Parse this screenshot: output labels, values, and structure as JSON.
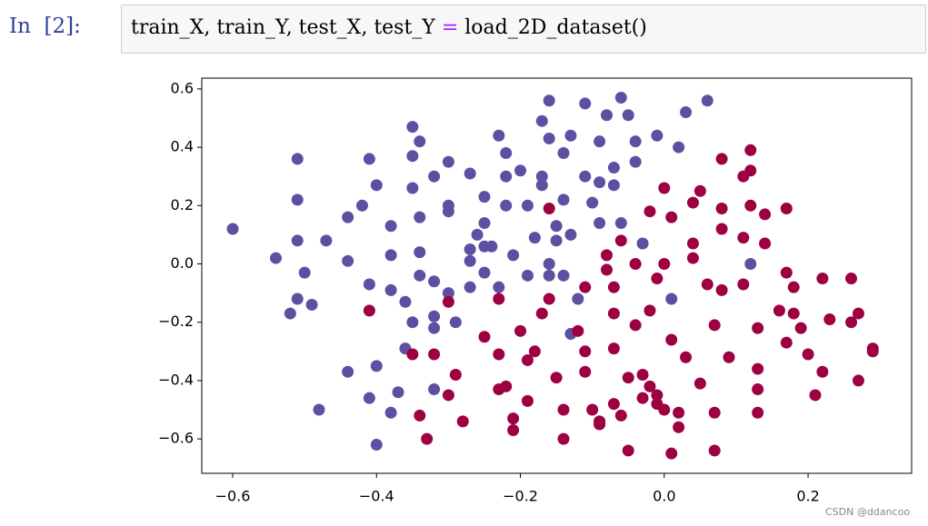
{
  "cell": {
    "prompt": "In  [2]:",
    "code": [
      "train_X, train_Y, test_X, test_Y ",
      "=",
      " load_2D_dataset()"
    ]
  },
  "watermark": "CSDN @ddancoo",
  "chart_data": {
    "type": "scatter",
    "xlim": [
      -0.643,
      0.344
    ],
    "ylim": [
      -0.718,
      0.637
    ],
    "xticks": [
      {
        "value": -0.6,
        "label": "−0.6"
      },
      {
        "value": -0.4,
        "label": "−0.4"
      },
      {
        "value": -0.2,
        "label": "−0.2"
      },
      {
        "value": 0,
        "label": "0.0"
      },
      0.2
    ],
    "yticks": [
      {
        "value": -0.6,
        "label": "−0.6"
      },
      {
        "value": -0.4,
        "label": "−0.4"
      },
      {
        "value": -0.2,
        "label": "−0.2"
      },
      {
        "value": 0,
        "label": "0.0"
      },
      0.2,
      0.4,
      0.6
    ],
    "grid": false,
    "series": [
      {
        "color": "#5e4fa2",
        "x": [
          -0.6,
          -0.54,
          -0.51,
          -0.51,
          -0.51,
          -0.5,
          -0.51,
          -0.52,
          -0.49,
          -0.47,
          -0.48,
          -0.44,
          -0.44,
          -0.42,
          -0.41,
          -0.4,
          -0.41,
          -0.38,
          -0.38,
          -0.38,
          -0.44,
          -0.4,
          -0.41,
          -0.4,
          -0.38,
          -0.37,
          -0.36,
          -0.36,
          -0.35,
          -0.34,
          -0.35,
          -0.35,
          -0.34,
          -0.34,
          -0.35,
          -0.34,
          -0.32,
          -0.32,
          -0.32,
          -0.32,
          -0.32,
          -0.3,
          -0.3,
          -0.3,
          -0.3,
          -0.29,
          -0.27,
          -0.27,
          -0.27,
          -0.27,
          -0.26,
          -0.25,
          -0.25,
          -0.25,
          -0.25,
          -0.24,
          -0.23,
          -0.22,
          -0.22,
          -0.22,
          -0.23,
          -0.21,
          -0.2,
          -0.19,
          -0.19,
          -0.18,
          -0.17,
          -0.17,
          -0.17,
          -0.16,
          -0.16,
          -0.16,
          -0.16,
          -0.15,
          -0.15,
          -0.14,
          -0.14,
          -0.14,
          -0.13,
          -0.13,
          -0.13,
          -0.12,
          -0.11,
          -0.11,
          -0.1,
          -0.09,
          -0.09,
          -0.09,
          -0.08,
          -0.07,
          -0.07,
          -0.06,
          -0.06,
          -0.05,
          -0.04,
          -0.04,
          -0.03,
          -0.01,
          0.02,
          0.03,
          0.06,
          0.01,
          0.12
        ],
        "values": [
          0.12,
          0.02,
          0.36,
          0.22,
          0.08,
          -0.03,
          -0.12,
          -0.17,
          -0.14,
          0.08,
          -0.5,
          0.16,
          0.01,
          0.2,
          0.36,
          0.27,
          -0.07,
          0.13,
          0.03,
          -0.09,
          -0.37,
          -0.35,
          -0.46,
          -0.62,
          -0.51,
          -0.44,
          -0.29,
          -0.13,
          -0.2,
          -0.04,
          0.26,
          0.37,
          0.16,
          0.04,
          0.47,
          0.42,
          0.3,
          -0.06,
          -0.18,
          -0.22,
          -0.43,
          -0.1,
          0.18,
          0.2,
          0.35,
          -0.2,
          0.31,
          0.05,
          0.01,
          -0.08,
          0.1,
          0.06,
          0.14,
          0.23,
          -0.03,
          0.06,
          0.44,
          0.38,
          0.3,
          0.2,
          -0.08,
          0.03,
          0.32,
          -0.04,
          0.2,
          0.09,
          0.3,
          0.27,
          0.49,
          0.43,
          0.56,
          -0.04,
          0.0,
          0.08,
          0.13,
          -0.04,
          0.38,
          0.22,
          0.44,
          0.1,
          -0.24,
          -0.12,
          0.55,
          0.3,
          0.21,
          0.42,
          0.28,
          0.14,
          0.51,
          0.27,
          0.33,
          0.57,
          0.14,
          0.51,
          0.42,
          0.35,
          0.07,
          0.44,
          0.4,
          0.52,
          0.56,
          -0.12,
          0.0
        ]
      },
      {
        "color": "#9e0142",
        "x": [
          -0.41,
          -0.35,
          -0.34,
          -0.33,
          -0.32,
          -0.3,
          -0.3,
          -0.29,
          -0.28,
          -0.25,
          -0.23,
          -0.23,
          -0.23,
          -0.22,
          -0.21,
          -0.21,
          -0.2,
          -0.19,
          -0.19,
          -0.18,
          -0.17,
          -0.16,
          -0.16,
          -0.15,
          -0.14,
          -0.14,
          -0.12,
          -0.11,
          -0.11,
          -0.11,
          -0.1,
          -0.09,
          -0.09,
          -0.08,
          -0.08,
          -0.07,
          -0.07,
          -0.07,
          -0.07,
          -0.06,
          -0.06,
          -0.05,
          -0.05,
          -0.04,
          -0.04,
          -0.03,
          -0.03,
          -0.02,
          -0.02,
          -0.02,
          -0.01,
          -0.01,
          -0.01,
          0.0,
          0.0,
          0.0,
          0.01,
          0.01,
          0.01,
          0.02,
          0.02,
          0.03,
          0.04,
          0.04,
          0.04,
          0.05,
          0.05,
          0.06,
          0.07,
          0.07,
          0.07,
          0.08,
          0.08,
          0.08,
          0.08,
          0.09,
          0.11,
          0.11,
          0.11,
          0.12,
          0.12,
          0.12,
          0.13,
          0.13,
          0.13,
          0.13,
          0.14,
          0.14,
          0.16,
          0.17,
          0.17,
          0.17,
          0.18,
          0.18,
          0.19,
          0.2,
          0.21,
          0.22,
          0.22,
          0.23,
          0.26,
          0.26,
          0.27,
          0.27,
          0.29,
          0.29
        ],
        "values": [
          -0.16,
          -0.31,
          -0.52,
          -0.6,
          -0.31,
          -0.13,
          -0.45,
          -0.38,
          -0.54,
          -0.25,
          -0.12,
          -0.31,
          -0.43,
          -0.42,
          -0.53,
          -0.57,
          -0.23,
          -0.33,
          -0.47,
          -0.3,
          -0.17,
          -0.12,
          0.19,
          -0.39,
          -0.5,
          -0.6,
          -0.23,
          -0.3,
          -0.08,
          -0.37,
          -0.5,
          -0.54,
          -0.55,
          0.03,
          -0.02,
          -0.08,
          -0.17,
          -0.29,
          -0.48,
          -0.52,
          0.08,
          -0.39,
          -0.64,
          0.0,
          -0.21,
          -0.38,
          -0.46,
          -0.42,
          -0.16,
          0.18,
          -0.05,
          -0.45,
          -0.48,
          0.26,
          0.0,
          -0.5,
          0.16,
          -0.65,
          -0.26,
          -0.51,
          -0.56,
          -0.32,
          0.21,
          0.07,
          0.02,
          0.25,
          -0.41,
          -0.07,
          -0.51,
          -0.64,
          -0.21,
          0.36,
          0.19,
          0.12,
          -0.09,
          -0.32,
          0.3,
          0.09,
          -0.07,
          0.32,
          0.2,
          0.39,
          -0.22,
          -0.36,
          -0.43,
          -0.51,
          0.17,
          0.07,
          -0.16,
          0.19,
          -0.03,
          -0.27,
          -0.08,
          -0.17,
          -0.22,
          -0.31,
          -0.45,
          -0.37,
          -0.05,
          -0.19,
          -0.05,
          -0.2,
          -0.17,
          -0.4,
          -0.3,
          -0.29
        ]
      }
    ]
  }
}
